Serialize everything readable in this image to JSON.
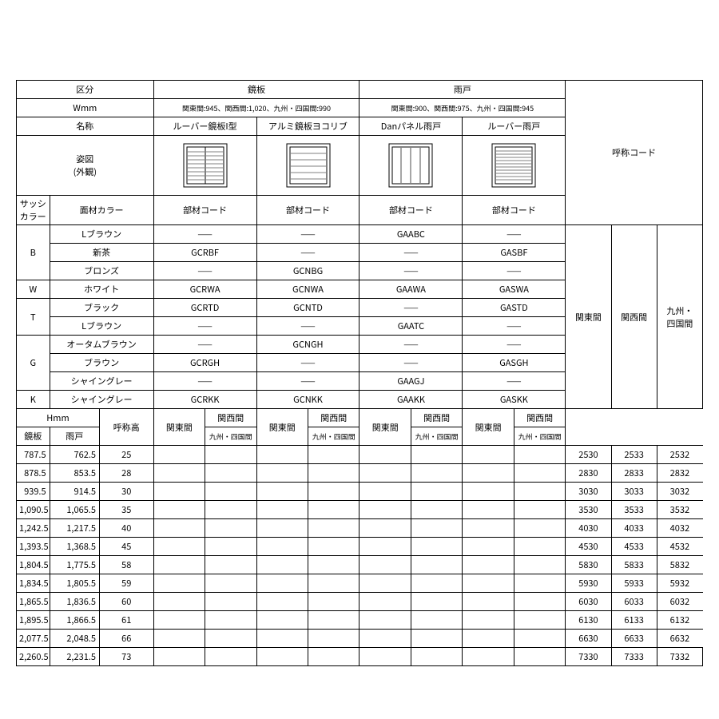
{
  "hdr": {
    "kubun": "区分",
    "wmm": "Wmm",
    "meisho": "名称",
    "sugata": "姿図",
    "gaikan": "(外観)",
    "sassi": "サッシ",
    "color": "カラー",
    "menzai": "面材カラー",
    "buzai": "部材コード",
    "kagamiita": "鏡板",
    "amado": "雨戸",
    "kosho": "呼称コード",
    "wmm_kagami": "関東間:945、関西間:1,020、九州・四国間:990",
    "wmm_amado": "関東間:900、関西間:975、九州・四国間:945",
    "col1": "ルーバー鏡板I型",
    "col2": "アルミ鏡板ヨコリブ",
    "col3": "Danパネル雨戸",
    "col4": "ルーバー雨戸",
    "kanto": "関東間",
    "kansai": "関西間",
    "kyushu": "九州・四国間",
    "kyushu2": "九州・\n四国間",
    "hmm": "Hmm",
    "koshoko": "呼称高"
  },
  "dash": "——",
  "sash": {
    "B": "B",
    "W": "W",
    "T": "T",
    "G": "G",
    "K": "K"
  },
  "mat": {
    "lbrown": "Lブラウン",
    "shincha": "新茶",
    "bronze": "ブロンズ",
    "white": "ホワイト",
    "black": "ブラック",
    "autumn": "オータムブラウン",
    "brown": "ブラウン",
    "shinegray": "シャイングレー"
  },
  "codes": {
    "r1": [
      "——",
      "——",
      "GAABC",
      "——"
    ],
    "r2": [
      "GCRBF",
      "——",
      "——",
      "GASBF"
    ],
    "r3": [
      "——",
      "GCNBG",
      "——",
      "——"
    ],
    "r4": [
      "GCRWA",
      "GCNWA",
      "GAAWA",
      "GASWA"
    ],
    "r5": [
      "GCRTD",
      "GCNTD",
      "——",
      "GASTD"
    ],
    "r6": [
      "——",
      "——",
      "GAATC",
      "——"
    ],
    "r7": [
      "——",
      "GCNGH",
      "——",
      "——"
    ],
    "r8": [
      "GCRGH",
      "——",
      "——",
      "GASGH"
    ],
    "r9": [
      "——",
      "——",
      "GAAGJ",
      "——"
    ],
    "r10": [
      "GCRKK",
      "GCNKK",
      "GAAKK",
      "GASKK"
    ]
  },
  "bottom_rows": [
    {
      "k": "787.5",
      "a": "762.5",
      "h": "25",
      "c1": "2530",
      "c2": "2533",
      "c3": "2532"
    },
    {
      "k": "878.5",
      "a": "853.5",
      "h": "28",
      "c1": "2830",
      "c2": "2833",
      "c3": "2832"
    },
    {
      "k": "939.5",
      "a": "914.5",
      "h": "30",
      "c1": "3030",
      "c2": "3033",
      "c3": "3032"
    },
    {
      "k": "1,090.5",
      "a": "1,065.5",
      "h": "35",
      "c1": "3530",
      "c2": "3533",
      "c3": "3532"
    },
    {
      "k": "1,242.5",
      "a": "1,217.5",
      "h": "40",
      "c1": "4030",
      "c2": "4033",
      "c3": "4032"
    },
    {
      "k": "1,393.5",
      "a": "1,368.5",
      "h": "45",
      "c1": "4530",
      "c2": "4533",
      "c3": "4532"
    },
    {
      "k": "1,804.5",
      "a": "1,775.5",
      "h": "58",
      "c1": "5830",
      "c2": "5833",
      "c3": "5832"
    },
    {
      "k": "1,834.5",
      "a": "1,805.5",
      "h": "59",
      "c1": "5930",
      "c2": "5933",
      "c3": "5932"
    },
    {
      "k": "1,865.5",
      "a": "1,836.5",
      "h": "60",
      "c1": "6030",
      "c2": "6033",
      "c3": "6032"
    },
    {
      "k": "1,895.5",
      "a": "1,866.5",
      "h": "61",
      "c1": "6130",
      "c2": "6133",
      "c3": "6132"
    },
    {
      "k": "2,077.5",
      "a": "2,048.5",
      "h": "66",
      "c1": "6630",
      "c2": "6633",
      "c3": "6632"
    },
    {
      "k": "2,260.5",
      "a": "2,231.5",
      "h": "73",
      "c1": "7330",
      "c2": "7333",
      "c3": "7332"
    }
  ],
  "style": {
    "text_color": "#000000",
    "border_color": "#000000",
    "bg": "#ffffff",
    "font_size_pt": 11
  }
}
